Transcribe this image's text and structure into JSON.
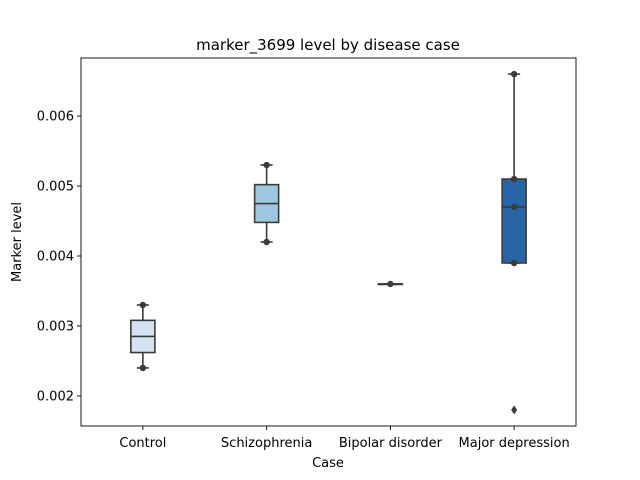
{
  "chart_data": {
    "type": "box",
    "title": "marker_3699 level by disease case",
    "xlabel": "Case",
    "ylabel": "Marker level",
    "ylim": [
      0.00157,
      0.00683
    ],
    "yticks": [
      0.002,
      0.003,
      0.004,
      0.005,
      0.006
    ],
    "ytick_labels": [
      "0.002",
      "0.003",
      "0.004",
      "0.005",
      "0.006"
    ],
    "categories": [
      "Control",
      "Schizophrenia",
      "Bipolar disorder",
      "Major depression"
    ],
    "colors": [
      "#d4e2f1",
      "#9cc7df",
      "#4a8dc3",
      "#2666a7"
    ],
    "boxes": [
      {
        "category": "Control",
        "whisker_low": 0.0024,
        "q1": 0.00262,
        "median": 0.00285,
        "q3": 0.00308,
        "whisker_high": 0.0033,
        "points": [
          0.0024,
          0.0033
        ],
        "outliers": []
      },
      {
        "category": "Schizophrenia",
        "whisker_low": 0.0042,
        "q1": 0.00448,
        "median": 0.00475,
        "q3": 0.00502,
        "whisker_high": 0.0053,
        "points": [
          0.0042,
          0.0053
        ],
        "outliers": []
      },
      {
        "category": "Bipolar disorder",
        "whisker_low": 0.0036,
        "q1": 0.0036,
        "median": 0.0036,
        "q3": 0.0036,
        "whisker_high": 0.0036,
        "points": [
          0.0036
        ],
        "outliers": []
      },
      {
        "category": "Major depression",
        "whisker_low": 0.0039,
        "q1": 0.0039,
        "median": 0.0047,
        "q3": 0.0051,
        "whisker_high": 0.0066,
        "points": [
          0.0039,
          0.0047,
          0.0051,
          0.0066
        ],
        "outliers": [
          0.0018
        ]
      }
    ]
  }
}
